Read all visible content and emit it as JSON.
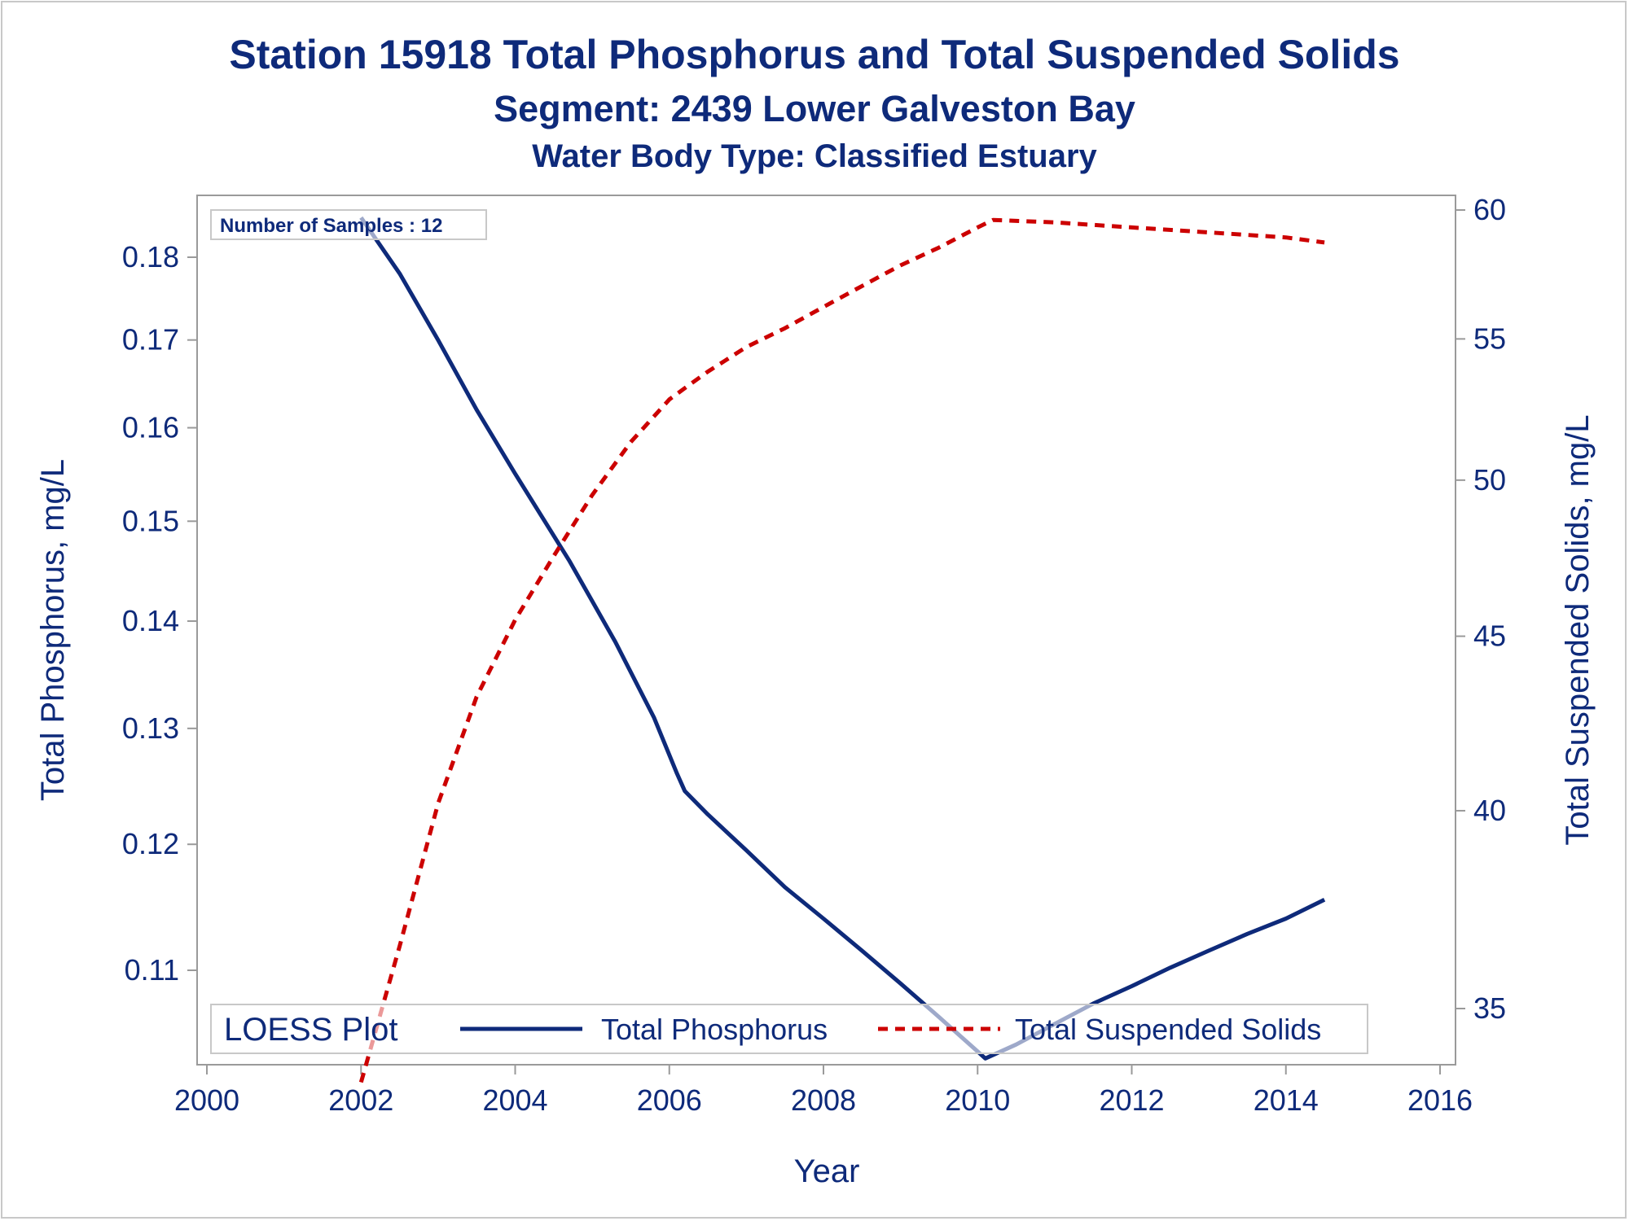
{
  "titles": {
    "line1": "Station 15918  Total Phosphorus and Total Suspended Solids",
    "line2": "Segment: 2439  Lower Galveston Bay",
    "line3": "Water Body Type: Classified Estuary"
  },
  "inset": {
    "samples_label": "Number of Samples : 12"
  },
  "legend": {
    "title": "LOESS Plot",
    "items": [
      {
        "label": "Total Phosphorus"
      },
      {
        "label": "Total Suspended Solids"
      }
    ]
  },
  "colors": {
    "phosphorus": "#0e2a7a",
    "tss": "#cc0000",
    "text": "#0e2a7a",
    "axis": "#9a9a9a"
  },
  "chart_data": {
    "type": "line",
    "title": "Station 15918  Total Phosphorus and Total Suspended Solids",
    "xlabel": "Year",
    "ylabel": "Total Phosphorus, mg/L",
    "y2label": "Total Suspended Solids, mg/L",
    "xlim": [
      2000,
      2016
    ],
    "xticks": [
      2000,
      2002,
      2004,
      2006,
      2008,
      2010,
      2012,
      2014,
      2016
    ],
    "yticks": [
      0.11,
      0.12,
      0.13,
      0.14,
      0.15,
      0.16,
      0.17,
      0.18
    ],
    "y2ticks": [
      35,
      40,
      45,
      50,
      55,
      60
    ],
    "y_scale": "log",
    "y2_scale": "log",
    "grid": false,
    "legend_position": "bottom-inside",
    "series": [
      {
        "name": "Total Phosphorus",
        "axis": "left",
        "style": "solid",
        "x": [
          2002.0,
          2002.5,
          2003.0,
          2003.5,
          2004.0,
          2004.7,
          2005.3,
          2005.8,
          2006.1,
          2006.2,
          2006.5,
          2007.0,
          2007.5,
          2008.0,
          2008.5,
          2009.0,
          2009.5,
          2010.0,
          2010.1,
          2010.5,
          2011.0,
          2011.5,
          2012.0,
          2012.5,
          2013.0,
          2013.5,
          2014.0,
          2014.5
        ],
        "values": [
          0.185,
          0.178,
          0.17,
          0.162,
          0.155,
          0.146,
          0.138,
          0.131,
          0.126,
          0.1245,
          0.1225,
          0.1195,
          0.1165,
          0.114,
          0.1115,
          0.109,
          0.1065,
          0.104,
          0.1035,
          0.1045,
          0.106,
          0.1075,
          0.1088,
          0.1102,
          0.1115,
          0.1128,
          0.114,
          0.1155
        ]
      },
      {
        "name": "Total Suspended Solids",
        "axis": "right",
        "style": "dashed",
        "x": [
          2002.0,
          2002.5,
          2003.0,
          2003.5,
          2004.0,
          2004.5,
          2005.0,
          2005.5,
          2006.0,
          2006.2,
          2006.5,
          2007.0,
          2007.5,
          2008.0,
          2008.5,
          2009.0,
          2009.5,
          2010.0,
          2010.2,
          2011.0,
          2012.0,
          2013.0,
          2014.0,
          2014.5
        ],
        "values": [
          33.3,
          36.5,
          40.2,
          43.2,
          45.5,
          47.5,
          49.5,
          51.3,
          52.8,
          53.2,
          53.8,
          54.7,
          55.4,
          56.2,
          57.0,
          57.8,
          58.5,
          59.3,
          59.6,
          59.5,
          59.3,
          59.1,
          58.9,
          58.7
        ]
      }
    ]
  }
}
